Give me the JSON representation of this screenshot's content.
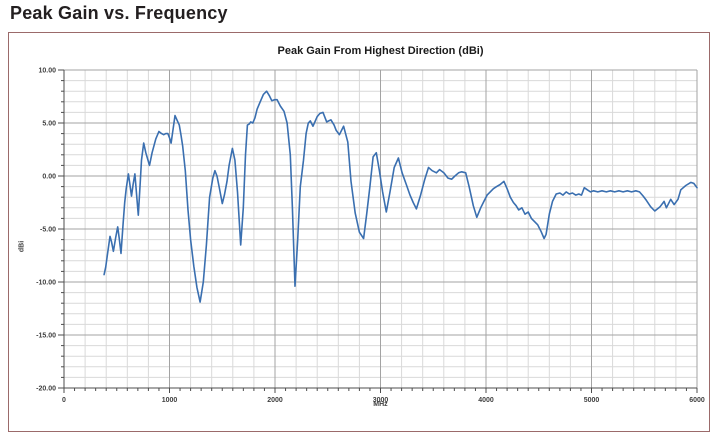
{
  "page": {
    "heading": "Peak Gain vs. Frequency"
  },
  "colors": {
    "line": "#3a6fb0",
    "panel_border": "#9b6a6a",
    "grid_minor": "#d9d9d9",
    "grid_major": "#a3a3a3",
    "axis": "#4d4d4d",
    "heading_text": "#231f20"
  },
  "chart_data": {
    "type": "line",
    "title": "Peak Gain From Highest Direction (dBi)",
    "xlabel": "MHz",
    "ylabel": "dBi",
    "xlim": [
      0,
      6000
    ],
    "ylim": [
      -20,
      10
    ],
    "x_tick_values": [
      0,
      1000,
      2000,
      3000,
      4000,
      5000,
      6000
    ],
    "x_tick_labels": [
      "0",
      "1000",
      "2000",
      "3000",
      "4000",
      "5000",
      "6000"
    ],
    "y_tick_values": [
      10,
      5,
      0,
      -5,
      -10,
      -15,
      -20
    ],
    "y_tick_labels": [
      "10.00",
      "5.00",
      "0.00",
      "-5.00",
      "-10.00",
      "-15.00",
      "-20.00"
    ],
    "x_grid_minor_step": 200,
    "x_grid_major_step": 1000,
    "x_axis_tick_step": 100,
    "y_grid_minor_step": 1,
    "y_grid_major_step": 5,
    "grid": "minor and major gridlines on",
    "legend": "none",
    "line_color": "#3a6fb0",
    "series": [
      {
        "name": "Peak Gain",
        "x": [
          380,
          395,
          410,
          436,
          450,
          468,
          490,
          509,
          525,
          540,
          560,
          575,
          590,
          610,
          625,
          640,
          655,
          672,
          690,
          704,
          720,
          735,
          755,
          775,
          810,
          835,
          870,
          900,
          925,
          945,
          965,
          985,
          1000,
          1015,
          1035,
          1052,
          1075,
          1093,
          1110,
          1125,
          1150,
          1175,
          1200,
          1230,
          1260,
          1290,
          1320,
          1350,
          1380,
          1410,
          1430,
          1450,
          1470,
          1500,
          1520,
          1545,
          1565,
          1596,
          1620,
          1645,
          1675,
          1700,
          1720,
          1738,
          1755,
          1770,
          1790,
          1810,
          1830,
          1860,
          1890,
          1920,
          1945,
          1970,
          1995,
          2020,
          2050,
          2085,
          2115,
          2145,
          2165,
          2190,
          2215,
          2240,
          2270,
          2295,
          2316,
          2335,
          2360,
          2400,
          2425,
          2455,
          2490,
          2530,
          2560,
          2580,
          2610,
          2650,
          2690,
          2720,
          2760,
          2800,
          2840,
          2870,
          2900,
          2930,
          2960,
          2990,
          3020,
          3055,
          3090,
          3130,
          3170,
          3205,
          3245,
          3280,
          3310,
          3340,
          3380,
          3420,
          3455,
          3490,
          3530,
          3560,
          3600,
          3640,
          3675,
          3705,
          3740,
          3770,
          3808,
          3840,
          3880,
          3913,
          3950,
          3980,
          4010,
          4040,
          4070,
          4100,
          4135,
          4170,
          4200,
          4230,
          4260,
          4285,
          4310,
          4340,
          4370,
          4400,
          4430,
          4460,
          4490,
          4520,
          4551,
          4570,
          4600,
          4630,
          4665,
          4700,
          4730,
          4760,
          4790,
          4820,
          4850,
          4880,
          4905,
          4932,
          4960,
          4990,
          5020,
          5060,
          5100,
          5140,
          5180,
          5220,
          5260,
          5300,
          5340,
          5380,
          5420,
          5455,
          5490,
          5520,
          5560,
          5600,
          5650,
          5688,
          5710,
          5751,
          5783,
          5820,
          5846,
          5894,
          5941,
          5970,
          6000
        ],
        "y": [
          -9.3,
          -8.6,
          -7.5,
          -5.7,
          -6.2,
          -7.1,
          -5.8,
          -4.8,
          -6.0,
          -7.3,
          -4.5,
          -2.5,
          -1.2,
          0.2,
          -0.8,
          -1.9,
          -0.8,
          0.2,
          -2.0,
          -3.7,
          -1.0,
          1.5,
          3.1,
          2.2,
          1.0,
          2.2,
          3.5,
          4.2,
          4.0,
          3.9,
          4.0,
          4.0,
          3.6,
          3.1,
          4.5,
          5.7,
          5.2,
          4.8,
          3.8,
          2.8,
          0.5,
          -3.2,
          -6.0,
          -8.5,
          -10.5,
          -11.9,
          -10.0,
          -6.5,
          -2.0,
          -0.2,
          0.5,
          0.0,
          -1.0,
          -2.6,
          -1.8,
          -0.5,
          1.0,
          2.6,
          1.5,
          -1.5,
          -6.5,
          -3.0,
          2.0,
          4.8,
          4.9,
          5.1,
          5.0,
          5.5,
          6.3,
          7.0,
          7.7,
          8.0,
          7.6,
          7.1,
          7.2,
          7.2,
          6.6,
          6.1,
          5.0,
          2.0,
          -3.0,
          -10.4,
          -6.0,
          -1.0,
          1.5,
          4.0,
          5.0,
          5.2,
          4.7,
          5.6,
          5.9,
          6.0,
          5.1,
          5.3,
          4.8,
          4.3,
          3.9,
          4.7,
          3.2,
          -0.5,
          -3.5,
          -5.3,
          -5.9,
          -3.5,
          -1.0,
          1.8,
          2.2,
          0.5,
          -1.5,
          -3.4,
          -1.5,
          0.8,
          1.7,
          0.3,
          -0.8,
          -1.8,
          -2.5,
          -3.1,
          -1.8,
          -0.3,
          0.8,
          0.5,
          0.3,
          0.6,
          0.3,
          -0.2,
          -0.3,
          0.0,
          0.3,
          0.4,
          0.3,
          -1.0,
          -2.8,
          -3.9,
          -3.0,
          -2.4,
          -1.8,
          -1.5,
          -1.2,
          -1.0,
          -0.8,
          -0.5,
          -1.2,
          -2.0,
          -2.5,
          -2.8,
          -3.2,
          -3.0,
          -3.6,
          -3.4,
          -4.0,
          -4.3,
          -4.6,
          -5.2,
          -5.9,
          -5.5,
          -3.6,
          -2.4,
          -1.7,
          -1.6,
          -1.8,
          -1.5,
          -1.7,
          -1.6,
          -1.8,
          -1.7,
          -1.8,
          -1.1,
          -1.3,
          -1.5,
          -1.4,
          -1.5,
          -1.4,
          -1.5,
          -1.4,
          -1.5,
          -1.4,
          -1.5,
          -1.4,
          -1.5,
          -1.4,
          -1.5,
          -1.9,
          -2.3,
          -2.9,
          -3.3,
          -2.9,
          -2.4,
          -3.0,
          -2.2,
          -2.7,
          -2.2,
          -1.3,
          -0.9,
          -0.6,
          -0.7,
          -1.1
        ]
      }
    ]
  }
}
